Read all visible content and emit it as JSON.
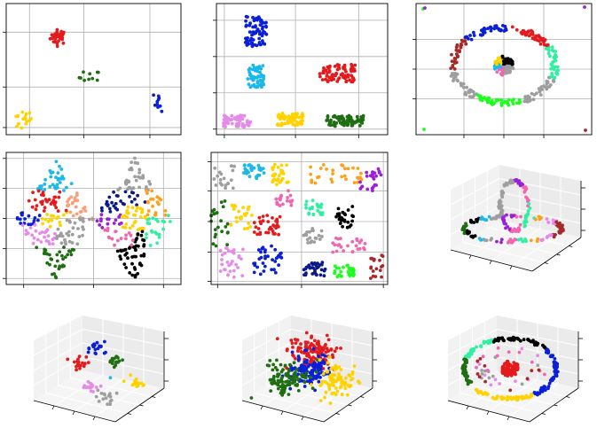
{
  "figure": {
    "colors": {
      "red": "#e41a1c",
      "blue": "#0a1fd6",
      "green": "#1f6f12",
      "gold": "#ffd200",
      "violet": "#e68aea",
      "cyan": "#1cb8ea",
      "gray": "#9e9e9e",
      "black": "#000000",
      "orange": "#ff9f1a",
      "teal": "#2ef0a0",
      "purple": "#9a1fd6",
      "salmon": "#f7a07a",
      "pink": "#f066b0",
      "navy": "#0b1a8a",
      "lime": "#1dff1d",
      "brown": "#a52a2a",
      "grid": "#b0b0b0"
    }
  },
  "chart_data": [
    {
      "type": "scatter",
      "panel": 1,
      "grid": true,
      "clusters": [
        {
          "color": "red",
          "x": 2.7,
          "y": 4.1,
          "sx": 0.35,
          "sy": 0.25,
          "n": 35
        },
        {
          "color": "green",
          "x": 4.3,
          "y": 2.4,
          "sx": 0.45,
          "sy": 0.25,
          "n": 10
        },
        {
          "color": "blue",
          "x": 7.9,
          "y": 1.4,
          "sx": 0.25,
          "sy": 0.35,
          "n": 10
        },
        {
          "color": "gold",
          "x": 0.8,
          "y": 0.6,
          "sx": 0.45,
          "sy": 0.35,
          "n": 16
        }
      ],
      "xlim": [
        0,
        9
      ],
      "ylim": [
        0,
        5.5
      ],
      "xticks": [
        1.2,
        4.0,
        7.4
      ],
      "yticks": [
        0.3,
        2.0,
        4.3
      ]
    },
    {
      "type": "scatter",
      "panel": 2,
      "grid": true,
      "clusters": [
        {
          "color": "blue",
          "x": 1.5,
          "y": 3.7,
          "sx": 0.45,
          "sy": 0.6,
          "n": 70
        },
        {
          "color": "cyan",
          "x": 1.5,
          "y": 2.1,
          "sx": 0.35,
          "sy": 0.45,
          "n": 60
        },
        {
          "color": "red",
          "x": 4.6,
          "y": 2.2,
          "sx": 0.75,
          "sy": 0.35,
          "n": 85
        },
        {
          "color": "violet",
          "x": 0.8,
          "y": 0.5,
          "sx": 0.6,
          "sy": 0.25,
          "n": 55
        },
        {
          "color": "gold",
          "x": 2.8,
          "y": 0.55,
          "sx": 0.55,
          "sy": 0.25,
          "n": 70
        },
        {
          "color": "green",
          "x": 4.9,
          "y": 0.5,
          "sx": 0.8,
          "sy": 0.22,
          "n": 75
        }
      ],
      "xlim": [
        0,
        6.5
      ],
      "ylim": [
        0,
        4.7
      ],
      "xticks": [
        0.3,
        3.0,
        5.4
      ],
      "yticks": [
        0.2,
        1.5,
        2.8,
        4.1
      ]
    },
    {
      "type": "scatter",
      "panel": 3,
      "grid": true,
      "ring_colors": [
        "red",
        "teal",
        "gray",
        "lime",
        "gray",
        "brown",
        "blue"
      ],
      "center_colors": [
        "black",
        "gray",
        "pink",
        "cyan",
        "gold"
      ],
      "corner_colors": [
        "lime",
        "purple",
        "lime",
        "brown"
      ],
      "xlim": [
        -2.2,
        2.2
      ],
      "ylim": [
        -2.2,
        2.2
      ],
      "xticks": [
        -1.0,
        0.0,
        1.0
      ],
      "yticks": [
        -1.0,
        0.0,
        1.0
      ]
    },
    {
      "type": "scatter",
      "panel": 4,
      "grid": true,
      "diamond_colors": {
        "left": [
          "cyan",
          "red",
          "blue",
          "salmon",
          "gold",
          "gray",
          "violet",
          "green"
        ],
        "right": [
          "gray",
          "navy",
          "orange",
          "purple",
          "gold",
          "teal",
          "pink",
          "black"
        ]
      },
      "xlim": [
        -2.5,
        2.5
      ],
      "ylim": [
        -2.2,
        2.2
      ],
      "xticks": [
        -2.0,
        0.0,
        2.0
      ],
      "yticks": [
        -2.0,
        -1.0,
        0.0,
        1.0,
        2.0
      ]
    },
    {
      "type": "scatter",
      "panel": 5,
      "grid": true,
      "cells": [
        {
          "color": "gray",
          "x": 0.3,
          "y": 3.5,
          "sx": 0.25,
          "sy": 0.4,
          "n": 20
        },
        {
          "color": "cyan",
          "x": 1.0,
          "y": 3.7,
          "sx": 0.25,
          "sy": 0.25,
          "n": 30
        },
        {
          "color": "gold",
          "x": 1.6,
          "y": 3.6,
          "sx": 0.2,
          "sy": 0.35,
          "n": 30
        },
        {
          "color": "orange",
          "x": 2.9,
          "y": 3.6,
          "sx": 0.6,
          "sy": 0.3,
          "n": 30
        },
        {
          "color": "purple",
          "x": 3.7,
          "y": 3.4,
          "sx": 0.25,
          "sy": 0.4,
          "n": 25
        },
        {
          "color": "green",
          "x": 0.2,
          "y": 2.0,
          "sx": 0.2,
          "sy": 0.8,
          "n": 25
        },
        {
          "color": "gold",
          "x": 0.7,
          "y": 2.2,
          "sx": 0.25,
          "sy": 0.4,
          "n": 25
        },
        {
          "color": "pink",
          "x": 1.7,
          "y": 2.8,
          "sx": 0.2,
          "sy": 0.25,
          "n": 20
        },
        {
          "color": "red",
          "x": 1.3,
          "y": 1.9,
          "sx": 0.3,
          "sy": 0.35,
          "n": 35
        },
        {
          "color": "teal",
          "x": 2.4,
          "y": 2.5,
          "sx": 0.2,
          "sy": 0.25,
          "n": 25
        },
        {
          "color": "black",
          "x": 3.1,
          "y": 2.2,
          "sx": 0.2,
          "sy": 0.35,
          "n": 25
        },
        {
          "color": "gray",
          "x": 2.4,
          "y": 1.6,
          "sx": 0.25,
          "sy": 0.25,
          "n": 20
        },
        {
          "color": "pink",
          "x": 3.2,
          "y": 1.3,
          "sx": 0.4,
          "sy": 0.25,
          "n": 25
        },
        {
          "color": "violet",
          "x": 0.5,
          "y": 0.7,
          "sx": 0.3,
          "sy": 0.5,
          "n": 30
        },
        {
          "color": "blue",
          "x": 1.3,
          "y": 0.8,
          "sx": 0.35,
          "sy": 0.5,
          "n": 35
        },
        {
          "color": "navy",
          "x": 2.4,
          "y": 0.5,
          "sx": 0.25,
          "sy": 0.22,
          "n": 35
        },
        {
          "color": "lime",
          "x": 3.1,
          "y": 0.45,
          "sx": 0.25,
          "sy": 0.2,
          "n": 30
        },
        {
          "color": "brown",
          "x": 3.85,
          "y": 0.6,
          "sx": 0.15,
          "sy": 0.4,
          "n": 18
        }
      ],
      "xlim": [
        0,
        4.1
      ],
      "ylim": [
        0,
        4.3
      ],
      "xticks": [
        0.15,
        2.1,
        4.0
      ],
      "yticks": [
        0.1,
        1.05,
        2.05,
        3.05,
        4.0
      ]
    },
    {
      "type": "scatter",
      "panel": 6,
      "projection": "3d",
      "colors": [
        "gold",
        "blue",
        "red",
        "green",
        "black",
        "cyan",
        "gray",
        "purple",
        "pink",
        "teal",
        "orange",
        "violet",
        "brown"
      ]
    },
    {
      "type": "scatter",
      "panel": 7,
      "projection": "3d",
      "clusters": [
        {
          "color": "blue",
          "x": 0.45,
          "y": 0.28,
          "n": 18
        },
        {
          "color": "green",
          "x": 0.62,
          "y": 0.42,
          "n": 18
        },
        {
          "color": "red",
          "x": 0.3,
          "y": 0.45,
          "n": 18
        },
        {
          "color": "gold",
          "x": 0.78,
          "y": 0.62,
          "n": 16
        },
        {
          "color": "violet",
          "x": 0.38,
          "y": 0.68,
          "n": 16
        },
        {
          "color": "gray",
          "x": 0.52,
          "y": 0.78,
          "n": 16
        },
        {
          "color": "cyan",
          "x": 0.55,
          "y": 0.52,
          "n": 1
        }
      ]
    },
    {
      "type": "scatter",
      "panel": 8,
      "projection": "3d",
      "clusters": [
        {
          "color": "red",
          "x": 0.52,
          "y": 0.32,
          "n": 120
        },
        {
          "color": "blue",
          "x": 0.5,
          "y": 0.52,
          "n": 110
        },
        {
          "color": "green",
          "x": 0.3,
          "y": 0.6,
          "n": 100
        },
        {
          "color": "gold",
          "x": 0.72,
          "y": 0.62,
          "n": 85
        }
      ]
    },
    {
      "type": "scatter",
      "panel": 9,
      "projection": "3d",
      "ring_colors": [
        "black",
        "blue",
        "gold",
        "green",
        "teal"
      ],
      "inner_colors": [
        "red",
        "violet",
        "gray",
        "pink",
        "brown"
      ]
    }
  ]
}
